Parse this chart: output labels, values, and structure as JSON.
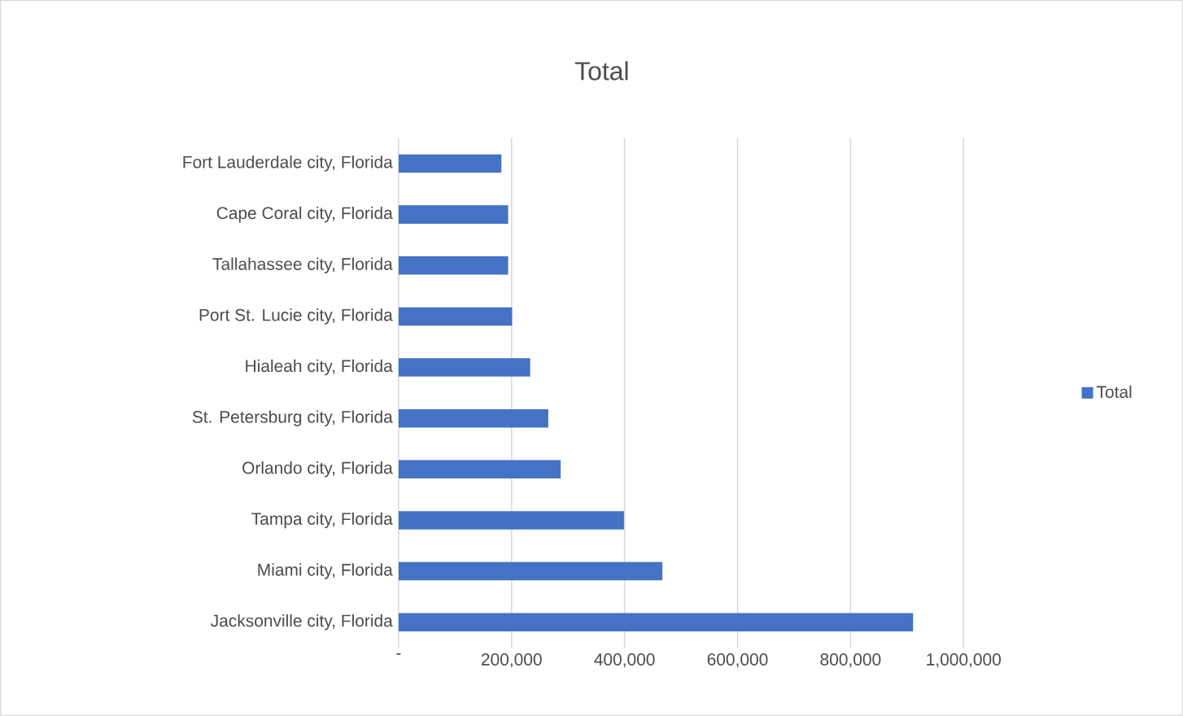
{
  "chart_data": {
    "type": "bar",
    "orientation": "horizontal",
    "title": "Total",
    "categories": [
      "Fort Lauderdale city, Florida",
      "Cape Coral city, Florida",
      "Tallahassee city, Florida",
      "Port St. Lucie city, Florida",
      "Hialeah city, Florida",
      "St. Petersburg city, Florida",
      "Orlando city, Florida",
      "Tampa city, Florida",
      "Miami city, Florida",
      "Jacksonville city, Florida"
    ],
    "series": [
      {
        "name": "Total",
        "color": "#4472c4",
        "values": [
          182000,
          194000,
          194000,
          201000,
          233000,
          265000,
          287000,
          399000,
          467000,
          911000
        ]
      }
    ],
    "xlim": [
      0,
      1000000
    ],
    "xticks": [
      {
        "value": 0,
        "label": "-"
      },
      {
        "value": 200000,
        "label": "200,000"
      },
      {
        "value": 400000,
        "label": "400,000"
      },
      {
        "value": 600000,
        "label": "600,000"
      },
      {
        "value": 800000,
        "label": "800,000"
      },
      {
        "value": 1000000,
        "label": "1,000,000"
      }
    ],
    "grid": "x",
    "legend": "right"
  }
}
